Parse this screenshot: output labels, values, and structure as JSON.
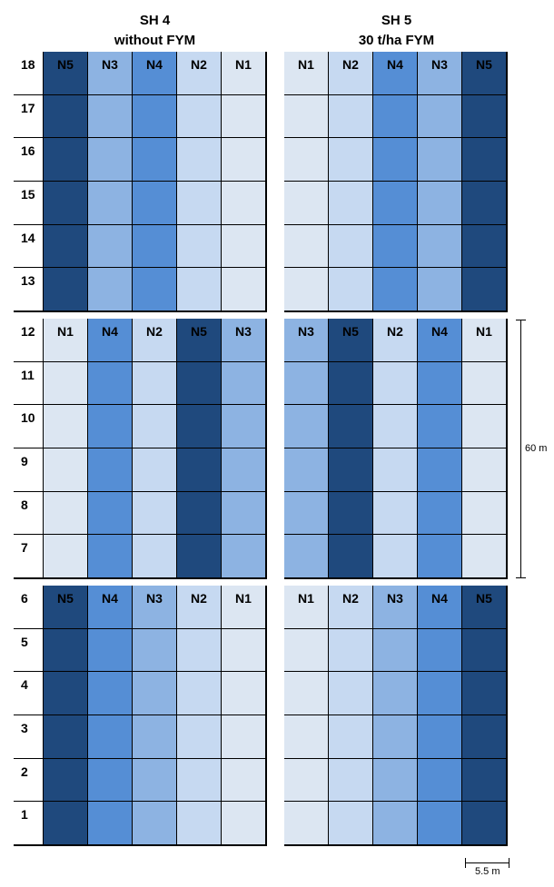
{
  "headers": {
    "left_line1": "SH 4",
    "left_line2": "without FYM",
    "right_line1": "SH 5",
    "right_line2": "30 t/ha FYM"
  },
  "colors": {
    "N1": "#dce6f2",
    "N2": "#c6d9f1",
    "N3": "#8db3e2",
    "N4": "#558ed5",
    "N5": "#1f497d",
    "row_label_bg": "#ffffff"
  },
  "dimensions": {
    "height_label": "60 m",
    "width_label": "5.5 m"
  },
  "blocks": [
    {
      "rows": [
        "18",
        "17",
        "16",
        "15",
        "14",
        "13"
      ],
      "left": [
        "N5",
        "N3",
        "N4",
        "N2",
        "N1"
      ],
      "right": [
        "N1",
        "N2",
        "N4",
        "N3",
        "N5"
      ]
    },
    {
      "rows": [
        "12",
        "11",
        "10",
        "9",
        "8",
        "7"
      ],
      "left": [
        "N1",
        "N4",
        "N2",
        "N5",
        "N3"
      ],
      "right": [
        "N3",
        "N5",
        "N2",
        "N4",
        "N1"
      ]
    },
    {
      "rows": [
        "6",
        "5",
        "4",
        "3",
        "2",
        "1"
      ],
      "left": [
        "N5",
        "N4",
        "N3",
        "N2",
        "N1"
      ],
      "right": [
        "N1",
        "N2",
        "N3",
        "N4",
        "N5"
      ]
    }
  ]
}
